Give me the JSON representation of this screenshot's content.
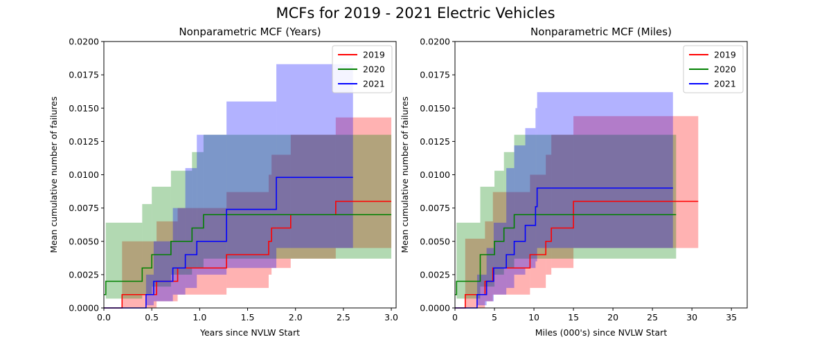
{
  "figure": {
    "suptitle": "MCFs for 2019 - 2021 Electric Vehicles"
  },
  "colors": {
    "2019": "#ff0000",
    "2020": "#008000",
    "2021": "#0000ff"
  },
  "chart_data": [
    {
      "type": "line",
      "title": "Nonparametric MCF (Years)",
      "xlabel": "Years since NVLW Start",
      "ylabel": "Mean cumulative number of failures",
      "xlim": [
        0,
        3.05
      ],
      "ylim": [
        0,
        0.02
      ],
      "xticks": [
        "0.0",
        "0.5",
        "1.0",
        "1.5",
        "2.0",
        "2.5",
        "3.0"
      ],
      "yticks": [
        "0.0000",
        "0.0025",
        "0.0050",
        "0.0075",
        "0.0100",
        "0.0125",
        "0.0150",
        "0.0175",
        "0.0200"
      ],
      "legend": {
        "position": "top-right",
        "entries": [
          "2019",
          "2020",
          "2021"
        ]
      },
      "grid": false,
      "series": [
        {
          "name": "2019",
          "step_x": [
            0.0,
            0.19,
            0.55,
            0.77,
            1.28,
            1.72,
            1.75,
            1.95,
            2.42,
            3.0
          ],
          "step_y": [
            0.0,
            0.001,
            0.002,
            0.003,
            0.004,
            0.005,
            0.006,
            0.007,
            0.008,
            0.008
          ],
          "ci_lower": [
            0.0,
            0.0,
            0.0005,
            0.001,
            0.0015,
            0.0025,
            0.003,
            0.0037,
            0.0045,
            0.0045
          ],
          "ci_upper": [
            0.0,
            0.005,
            0.0065,
            0.0075,
            0.0087,
            0.01,
            0.0115,
            0.013,
            0.0143,
            0.0143
          ]
        },
        {
          "name": "2020",
          "step_x": [
            0.0,
            0.02,
            0.4,
            0.5,
            0.7,
            0.92,
            1.04,
            3.0
          ],
          "step_y": [
            0.001,
            0.002,
            0.003,
            0.004,
            0.005,
            0.006,
            0.007,
            0.007
          ],
          "ci_lower": [
            0.0,
            0.0007,
            0.001,
            0.0016,
            0.0025,
            0.003,
            0.0037,
            0.0037
          ],
          "ci_upper": [
            0.0,
            0.0064,
            0.0078,
            0.0091,
            0.0103,
            0.0117,
            0.013,
            0.013
          ]
        },
        {
          "name": "2021",
          "step_x": [
            0.0,
            0.44,
            0.52,
            0.72,
            0.85,
            0.97,
            1.28,
            1.8,
            2.6
          ],
          "step_y": [
            0.0,
            0.001,
            0.002,
            0.003,
            0.004,
            0.005,
            0.0074,
            0.0098,
            0.0098
          ],
          "ci_lower": [
            0.0,
            0.0002,
            0.0005,
            0.001,
            0.0015,
            0.0025,
            0.003,
            0.0045,
            0.0045
          ],
          "ci_upper": [
            0.0,
            0.0025,
            0.005,
            0.0075,
            0.0105,
            0.013,
            0.0155,
            0.0183,
            0.0183
          ]
        }
      ]
    },
    {
      "type": "line",
      "title": "Nonparametric MCF (Miles)",
      "xlabel": "Miles (000's) since NVLW Start",
      "ylabel": "Mean cumulative number of failures",
      "xlim": [
        0,
        37
      ],
      "ylim": [
        0,
        0.02
      ],
      "xticks": [
        "0",
        "5",
        "10",
        "15",
        "20",
        "25",
        "30",
        "35"
      ],
      "yticks": [
        "0.0000",
        "0.0025",
        "0.0050",
        "0.0075",
        "0.0100",
        "0.0125",
        "0.0150",
        "0.0175",
        "0.0200"
      ],
      "legend": {
        "position": "top-right",
        "entries": [
          "2019",
          "2020",
          "2021"
        ]
      },
      "grid": false,
      "series": [
        {
          "name": "2019",
          "step_x": [
            0.0,
            1.3,
            3.8,
            4.8,
            9.5,
            11.5,
            12.2,
            15.0,
            30.8
          ],
          "step_y": [
            0.0,
            0.001,
            0.002,
            0.003,
            0.004,
            0.005,
            0.006,
            0.008,
            0.008
          ],
          "ci_lower": [
            0.0,
            0.0,
            0.0005,
            0.001,
            0.0015,
            0.0025,
            0.003,
            0.0045,
            0.0045
          ],
          "ci_upper": [
            0.0,
            0.0052,
            0.0065,
            0.0087,
            0.01,
            0.0115,
            0.013,
            0.0144,
            0.0144
          ]
        },
        {
          "name": "2020",
          "step_x": [
            0.0,
            0.2,
            3.2,
            5.0,
            6.2,
            7.5,
            28.0
          ],
          "step_y": [
            0.001,
            0.002,
            0.004,
            0.005,
            0.006,
            0.007,
            0.007
          ],
          "ci_lower": [
            0.0,
            0.0007,
            0.0016,
            0.0025,
            0.003,
            0.0037,
            0.0037
          ],
          "ci_upper": [
            0.0,
            0.0064,
            0.0091,
            0.0103,
            0.0117,
            0.013,
            0.013
          ]
        },
        {
          "name": "2021",
          "step_x": [
            0.0,
            2.8,
            4.0,
            4.9,
            6.5,
            7.5,
            8.9,
            10.2,
            10.4,
            27.6
          ],
          "step_y": [
            0.0,
            0.001,
            0.002,
            0.003,
            0.004,
            0.005,
            0.0062,
            0.0076,
            0.009,
            0.009
          ],
          "ci_lower": [
            0.0,
            0.0002,
            0.0005,
            0.001,
            0.0015,
            0.0025,
            0.003,
            0.0035,
            0.0045,
            0.0045
          ],
          "ci_upper": [
            0.0,
            0.0025,
            0.0045,
            0.0064,
            0.0105,
            0.0122,
            0.0135,
            0.015,
            0.0162,
            0.0162
          ]
        }
      ]
    }
  ]
}
